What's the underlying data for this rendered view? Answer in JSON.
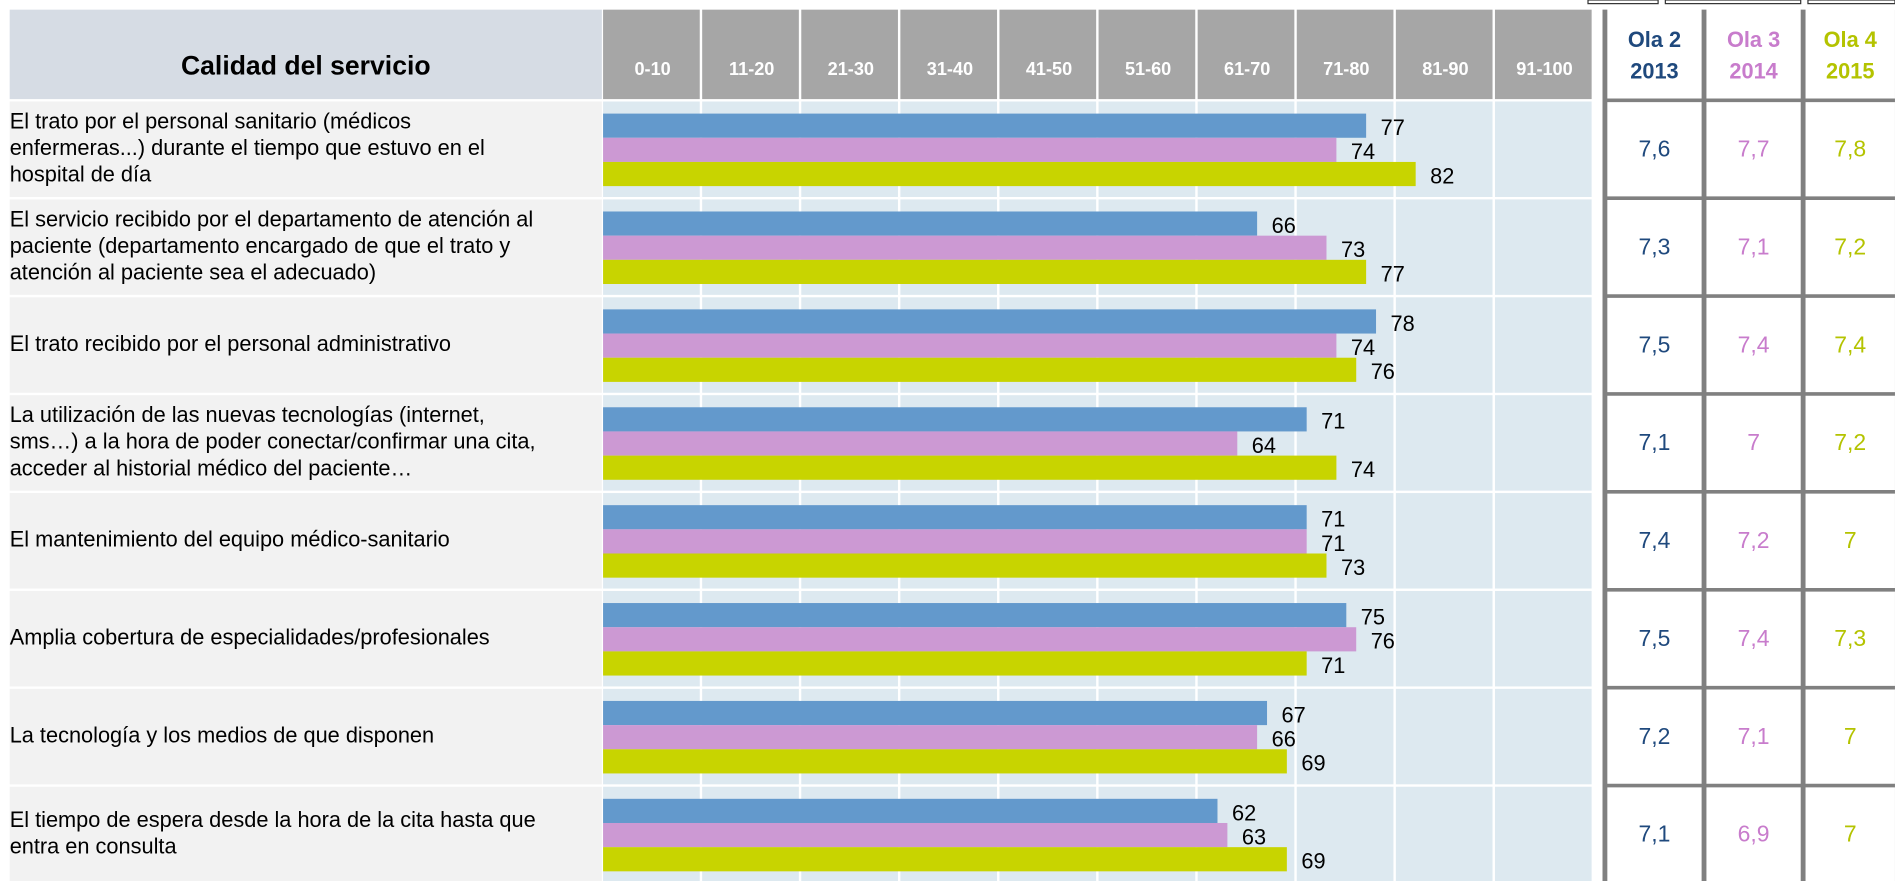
{
  "chart_data": {
    "type": "bar",
    "orientation": "horizontal",
    "title": "Calidad del servicio",
    "x_bands": [
      "0-10",
      "11-20",
      "21-30",
      "31-40",
      "41-50",
      "51-60",
      "61-70",
      "71-80",
      "81-90",
      "91-100"
    ],
    "xlim": [
      0,
      100
    ],
    "categories": [
      [
        "El trato por el personal sanitario (médicos",
        "enfermeras...) durante el tiempo que estuvo en el",
        "hospital de día"
      ],
      [
        "El servicio recibido por el departamento de atención al",
        "paciente (departamento encargado de que el trato y",
        "atención al paciente sea el adecuado)"
      ],
      [
        "El trato recibido por el personal administrativo"
      ],
      [
        "La utilización de las nuevas tecnologías (internet,",
        "sms…) a la hora de poder conectar/confirmar una cita,",
        "acceder al historial médico del paciente…"
      ],
      [
        "El mantenimiento del equipo médico-sanitario"
      ],
      [
        "Amplia cobertura de especialidades/profesionales"
      ],
      [
        "La tecnología y los medios de que disponen"
      ],
      [
        "El tiempo de espera desde la hora de la cita hasta que",
        "entra en consulta"
      ]
    ],
    "series": [
      {
        "color": "#6399cc",
        "values": [
          77,
          66,
          78,
          71,
          71,
          75,
          67,
          62
        ]
      },
      {
        "color": "#cc99d3",
        "values": [
          74,
          73,
          74,
          64,
          71,
          76,
          66,
          63
        ]
      },
      {
        "color": "#c8d400",
        "values": [
          82,
          77,
          76,
          74,
          73,
          71,
          69,
          69
        ]
      }
    ],
    "table": {
      "columns": [
        {
          "wave": "Ola 2",
          "year": "2013",
          "color": "#1f497d",
          "values": [
            "7,6",
            "7,3",
            "7,5",
            "7,1",
            "7,4",
            "7,5",
            "7,2",
            "7,1"
          ]
        },
        {
          "wave": "Ola 3",
          "year": "2014",
          "color": "#c87ccc",
          "values": [
            "7,7",
            "7,1",
            "7,4",
            "7",
            "7,2",
            "7,4",
            "7,1",
            "6,9"
          ]
        },
        {
          "wave": "Ola 4",
          "year": "2015",
          "color": "#b4c300",
          "values": [
            "7,8",
            "7,2",
            "7,4",
            "7,2",
            "7",
            "7,3",
            "7",
            "7"
          ]
        }
      ]
    }
  }
}
